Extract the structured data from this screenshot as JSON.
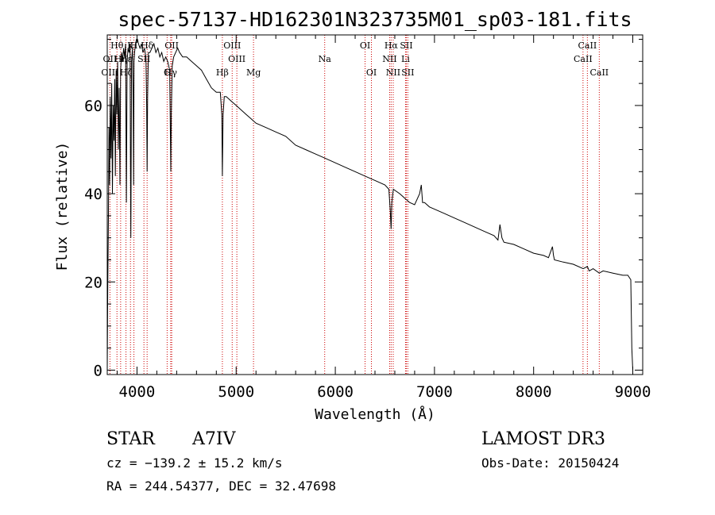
{
  "chart_data": {
    "type": "line",
    "title": "spec-57137-HD162301N323735M01_sp03-181.fits",
    "xlabel": "Wavelength (Å)",
    "ylabel": "Flux (relative)",
    "xlim": [
      3700,
      9100
    ],
    "ylim": [
      -1,
      76
    ],
    "x_ticks": [
      4000,
      5000,
      6000,
      7000,
      8000,
      9000
    ],
    "y_ticks": [
      0,
      20,
      40,
      60
    ],
    "series": [
      {
        "name": "flux",
        "x": [
          3700,
          3705,
          3712,
          3718,
          3724,
          3730,
          3738,
          3745,
          3752,
          3760,
          3768,
          3775,
          3782,
          3790,
          3797,
          3805,
          3812,
          3820,
          3828,
          3835,
          3845,
          3855,
          3865,
          3875,
          3885,
          3889,
          3893,
          3900,
          3910,
          3920,
          3930,
          3934,
          3938,
          3945,
          3955,
          3962,
          3966,
          3970,
          3976,
          3985,
          3995,
          4005,
          4015,
          4030,
          4045,
          4060,
          4075,
          4090,
          4097,
          4102,
          4107,
          4115,
          4130,
          4150,
          4170,
          4190,
          4210,
          4230,
          4250,
          4270,
          4290,
          4310,
          4330,
          4336,
          4341,
          4346,
          4355,
          4370,
          4390,
          4410,
          4430,
          4460,
          4500,
          4550,
          4600,
          4650,
          4700,
          4750,
          4800,
          4840,
          4855,
          4861,
          4868,
          4880,
          4900,
          4950,
          5000,
          5050,
          5100,
          5150,
          5200,
          5300,
          5400,
          5500,
          5600,
          5700,
          5800,
          5900,
          6000,
          6100,
          6200,
          6300,
          6400,
          6500,
          6540,
          6555,
          6563,
          6570,
          6585,
          6650,
          6700,
          6750,
          6800,
          6850,
          6867,
          6880,
          6900,
          6950,
          7000,
          7100,
          7200,
          7300,
          7400,
          7500,
          7600,
          7640,
          7660,
          7680,
          7700,
          7800,
          7900,
          8000,
          8100,
          8150,
          8190,
          8200,
          8210,
          8300,
          8400,
          8500,
          8542,
          8560,
          8600,
          8662,
          8700,
          8800,
          8900,
          8950,
          8980,
          8990,
          9000
        ],
        "y": [
          0,
          18,
          35,
          55,
          42,
          62,
          48,
          65,
          40,
          60,
          52,
          66,
          44,
          68,
          58,
          70,
          50,
          64,
          42,
          68,
          72,
          70,
          73,
          71,
          74,
          55,
          38,
          70,
          73,
          72,
          74,
          48,
          30,
          70,
          73,
          60,
          42,
          70,
          72,
          74,
          75,
          75,
          74,
          73,
          74,
          72,
          73,
          71,
          60,
          45,
          62,
          72,
          72,
          73,
          74,
          72,
          73,
          71,
          72,
          70,
          71,
          70,
          68,
          55,
          45,
          58,
          69,
          71,
          72,
          73,
          72,
          71,
          71,
          70,
          69,
          68,
          66,
          64,
          63,
          63,
          58,
          44,
          58,
          62,
          62,
          61,
          60,
          59,
          58,
          57,
          56,
          55,
          54,
          53,
          51,
          50,
          49,
          48,
          47,
          46,
          45,
          44,
          43,
          42,
          41,
          36,
          32,
          38,
          41,
          40,
          39,
          38,
          37.5,
          40,
          42,
          38,
          38,
          37,
          36.5,
          35.5,
          34.5,
          33.5,
          32.5,
          31.5,
          30.5,
          29.5,
          33,
          30,
          29,
          28.5,
          27.5,
          26.5,
          26,
          25.5,
          28,
          26,
          25,
          24.5,
          24,
          23,
          23.5,
          22.5,
          23,
          22,
          22.5,
          22,
          21.5,
          21.5,
          20.5,
          5,
          0
        ]
      }
    ],
    "spectral_lines": [
      {
        "label": "Hθ",
        "wl": 3798,
        "row": 1
      },
      {
        "label": "K",
        "wl": 3934,
        "row": 1
      },
      {
        "label": "H",
        "wl": 3969,
        "row": 1
      },
      {
        "label": "Hδ",
        "wl": 4102,
        "row": 1
      },
      {
        "label": "OII",
        "wl": 4350,
        "row": 1
      },
      {
        "label": "OIII",
        "wl": 4960,
        "row": 1
      },
      {
        "label": "OI",
        "wl": 6300,
        "row": 1
      },
      {
        "label": "Hα",
        "wl": 6563,
        "row": 1
      },
      {
        "label": "SII",
        "wl": 6716,
        "row": 1
      },
      {
        "label": "CaII",
        "wl": 8542,
        "row": 1
      },
      {
        "label": "OII",
        "wl": 3727,
        "row": 2
      },
      {
        "label": "Hη",
        "wl": 3835,
        "row": 2
      },
      {
        "label": "Hε",
        "wl": 3889,
        "row": 2
      },
      {
        "label": "SII",
        "wl": 4070,
        "row": 2
      },
      {
        "label": "OIII",
        "wl": 5007,
        "row": 2
      },
      {
        "label": "Na",
        "wl": 5893,
        "row": 2
      },
      {
        "label": "NII",
        "wl": 6548,
        "row": 2
      },
      {
        "label": "Li",
        "wl": 6708,
        "row": 2
      },
      {
        "label": "CaII",
        "wl": 8498,
        "row": 2
      },
      {
        "label": "OIII",
        "wl": 3727,
        "row": 3
      },
      {
        "label": "Hζ",
        "wl": 3889,
        "row": 3
      },
      {
        "label": "Hγ",
        "wl": 4340,
        "row": 3
      },
      {
        "label": "G",
        "wl": 4304,
        "row": 3
      },
      {
        "label": "Hβ",
        "wl": 4861,
        "row": 3
      },
      {
        "label": "Mg",
        "wl": 5175,
        "row": 3
      },
      {
        "label": "OI",
        "wl": 6364,
        "row": 3
      },
      {
        "label": "NII",
        "wl": 6584,
        "row": 3
      },
      {
        "label": "SII",
        "wl": 6731,
        "row": 3
      },
      {
        "label": "CaII",
        "wl": 8662,
        "row": 3
      }
    ]
  },
  "info": {
    "object_type": "STAR",
    "subclass": "A7IV",
    "survey": "LAMOST DR3",
    "cz": "cz = −139.2 ± 15.2 km/s",
    "obs_date": "Obs-Date: 20150424",
    "coords": "RA = 244.54377, DEC =  32.47698"
  },
  "colors": {
    "line_marker": "#cc0000",
    "spectrum": "#000000"
  }
}
